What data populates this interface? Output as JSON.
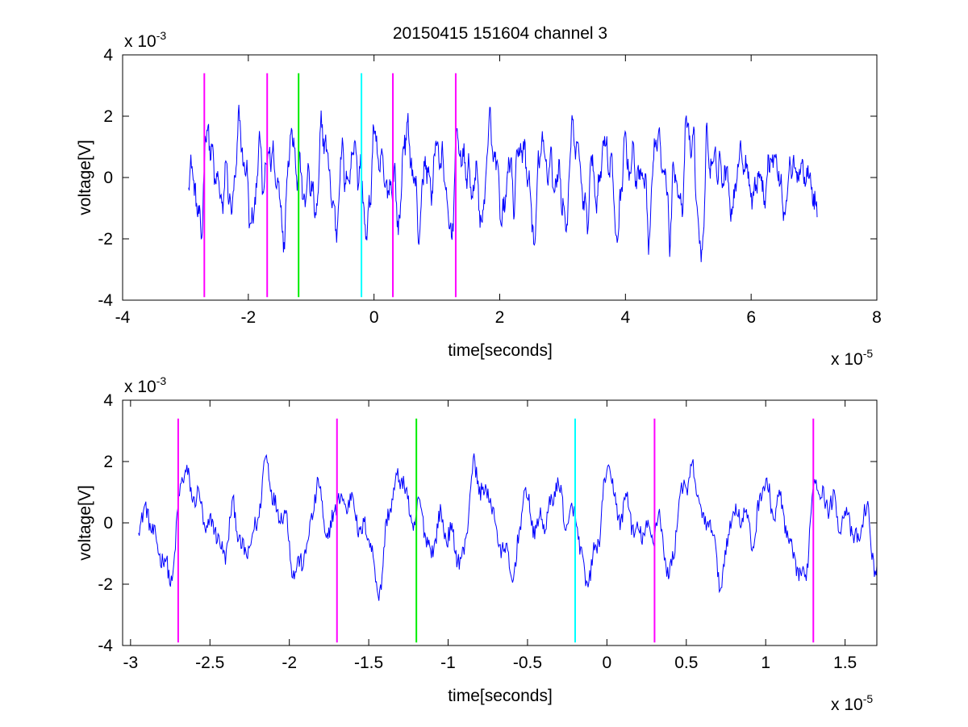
{
  "figure": {
    "title": "20150415 151604 channel 3"
  },
  "colors": {
    "signal": "#0000ff",
    "marker_magenta": "#ff00ff",
    "marker_green": "#00ee00",
    "marker_cyan": "#00ffff",
    "axis": "#000000"
  },
  "chart_data": [
    {
      "type": "line",
      "title": "20150415 151604 channel 3",
      "xlabel": "time[seconds]",
      "ylabel": "voltage[V]",
      "x_exponent": "x 10",
      "x_exponent_power": "-5",
      "y_exponent": "x 10",
      "y_exponent_power": "-3",
      "xlim": [
        -4,
        8
      ],
      "ylim": [
        -4,
        4
      ],
      "xticks": [
        "-4",
        "-2",
        "0",
        "2",
        "4",
        "6",
        "8"
      ],
      "yticks": [
        "-4",
        "-2",
        "0",
        "2",
        "4"
      ],
      "grid": false,
      "signal_range": [
        -2.95,
        7.05
      ],
      "markers": [
        {
          "x": -2.7,
          "color": "magenta"
        },
        {
          "x": -1.7,
          "color": "magenta"
        },
        {
          "x": -1.2,
          "color": "green"
        },
        {
          "x": -0.2,
          "color": "cyan"
        },
        {
          "x": 0.3,
          "color": "magenta"
        },
        {
          "x": 1.3,
          "color": "magenta"
        }
      ]
    },
    {
      "type": "line",
      "title": "",
      "xlabel": "time[seconds]",
      "ylabel": "voltage[V]",
      "x_exponent": "x 10",
      "x_exponent_power": "-5",
      "y_exponent": "x 10",
      "y_exponent_power": "-3",
      "xlim": [
        -3.05,
        1.7
      ],
      "ylim": [
        -4,
        4
      ],
      "xticks": [
        "-3",
        "-2.5",
        "-2",
        "-1.5",
        "-1",
        "-0.5",
        "0",
        "0.5",
        "1",
        "1.5"
      ],
      "yticks": [
        "-4",
        "-2",
        "0",
        "2",
        "4"
      ],
      "grid": false,
      "signal_range": [
        -2.95,
        1.7
      ],
      "markers": [
        {
          "x": -2.7,
          "color": "magenta"
        },
        {
          "x": -1.7,
          "color": "magenta"
        },
        {
          "x": -1.2,
          "color": "green"
        },
        {
          "x": -0.2,
          "color": "cyan"
        },
        {
          "x": 0.3,
          "color": "magenta"
        },
        {
          "x": 1.3,
          "color": "magenta"
        }
      ]
    }
  ]
}
